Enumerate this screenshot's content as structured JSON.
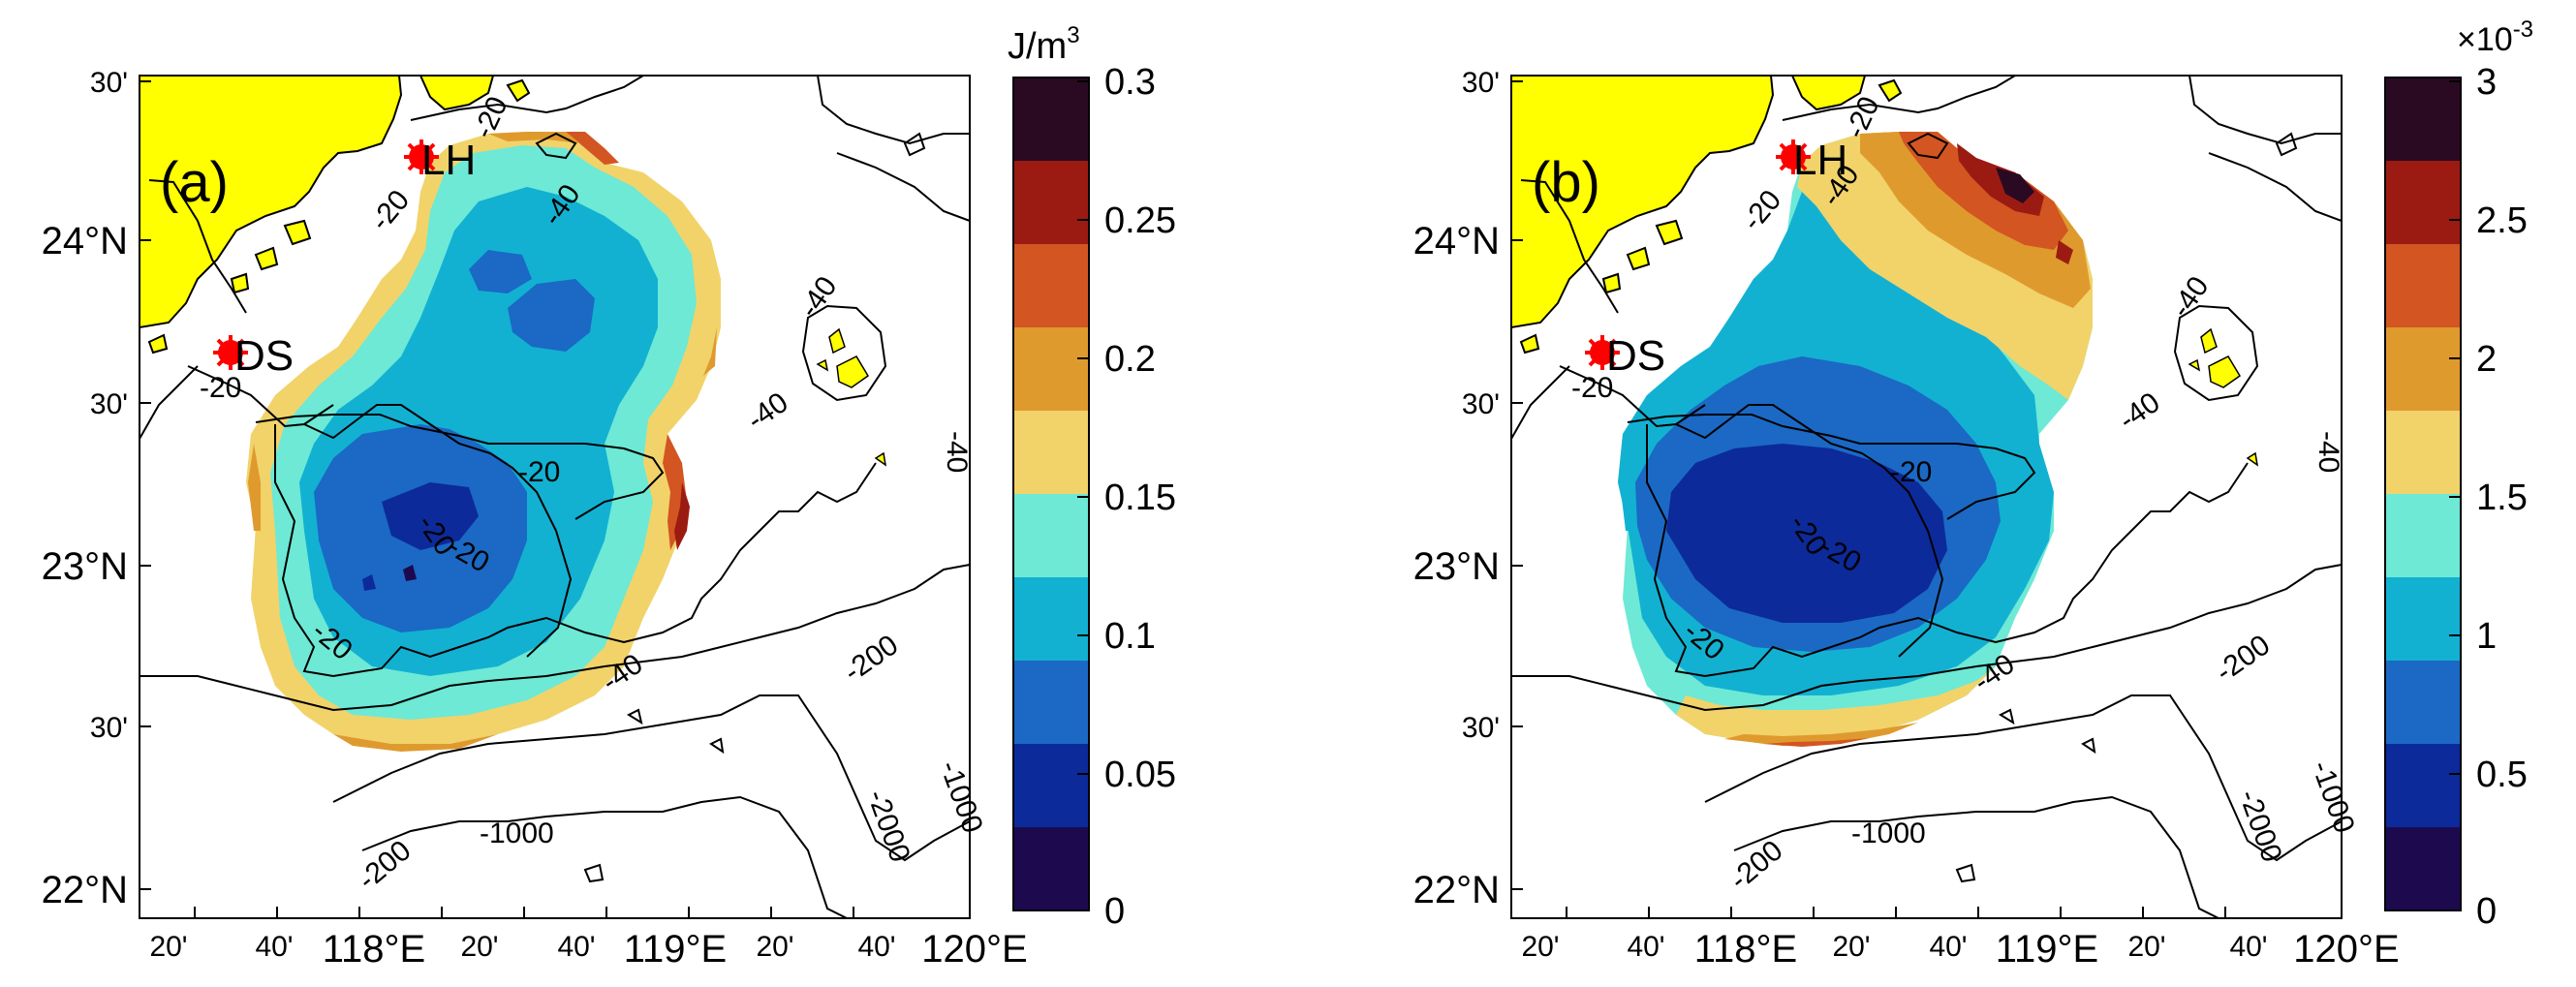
{
  "figure": {
    "panels": [
      {
        "label": "(a)",
        "colorbar": {
          "unit_prefix": "J/m",
          "unit_sup": "3",
          "tick_labels": [
            "0.3",
            "0.25",
            "0.2",
            "0.15",
            "0.1",
            "0.05",
            "0"
          ],
          "colors": [
            "#2a0a22",
            "#9b1b12",
            "#d35522",
            "#df9a2e",
            "#f1d36a",
            "#6de9d6",
            "#12b1d2",
            "#1b69c4",
            "#0c2a9a",
            "#1d0a4e"
          ]
        },
        "markers": [
          {
            "name": "LH",
            "label": "LH"
          },
          {
            "name": "DS",
            "label": "DS"
          }
        ],
        "contour_labels": [
          "-20",
          "-40",
          "-20",
          "-40",
          "-40",
          "-20",
          "-20",
          "-20",
          "-20",
          "-40",
          "-40",
          "-200",
          "-200",
          "-1000",
          "-1000",
          "-2000",
          "-20"
        ]
      },
      {
        "label": "(b)",
        "colorbar": {
          "unit_prefix": "×10",
          "unit_sup": "-3",
          "tick_labels": [
            "3",
            "2.5",
            "2",
            "1.5",
            "1",
            "0.5",
            "0"
          ],
          "colors": [
            "#2a0a22",
            "#9b1b12",
            "#d35522",
            "#df9a2e",
            "#f1d36a",
            "#6de9d6",
            "#12b1d2",
            "#1b69c4",
            "#0c2a9a",
            "#1d0a4e"
          ]
        },
        "markers": [
          {
            "name": "LH",
            "label": "LH"
          },
          {
            "name": "DS",
            "label": "DS"
          }
        ],
        "contour_labels": [
          "-20",
          "-40",
          "-20",
          "-40",
          "-40",
          "-20",
          "-20",
          "-20",
          "-20",
          "-40",
          "-40",
          "-200",
          "-200",
          "-1000",
          "-1000",
          "-2000",
          "-20"
        ]
      }
    ],
    "lat_ticks": [
      "30'",
      "24°N",
      "30'",
      "23°N",
      "30'",
      "22°N"
    ],
    "lon_ticks": [
      "20'",
      "40'",
      "118°E",
      "20'",
      "40'",
      "119°E",
      "20'",
      "40'",
      "120°E"
    ]
  },
  "chart_data": [
    {
      "type": "heatmap",
      "title": "(a)",
      "quantity_unit": "J/m3",
      "colorbar_range": [
        0,
        0.3
      ],
      "colorbar_levels": [
        0,
        0.03,
        0.06,
        0.09,
        0.12,
        0.15,
        0.18,
        0.21,
        0.24,
        0.27,
        0.3
      ],
      "colorbar_ticks": [
        0,
        0.05,
        0.1,
        0.15,
        0.2,
        0.25,
        0.3
      ],
      "lon_range": [
        117.2,
        120.0
      ],
      "lat_range": [
        21.85,
        24.62
      ],
      "lat_ticks_deg": [
        24.5,
        24.0,
        23.5,
        23.0,
        22.5,
        22.0
      ],
      "lon_ticks_deg": [
        117.333,
        117.667,
        118.0,
        118.333,
        118.667,
        119.0,
        119.333,
        119.667,
        120.0
      ],
      "isobaths_m": [
        -20,
        -40,
        -200,
        -1000,
        -2000
      ],
      "stations": [
        "LH",
        "DS"
      ]
    },
    {
      "type": "heatmap",
      "title": "(b)",
      "quantity_unit": "x10^-3",
      "colorbar_range": [
        0,
        3
      ],
      "colorbar_levels": [
        0,
        0.3,
        0.6,
        0.9,
        1.2,
        1.5,
        1.8,
        2.1,
        2.4,
        2.7,
        3.0
      ],
      "colorbar_ticks": [
        0,
        0.5,
        1,
        1.5,
        2,
        2.5,
        3
      ],
      "lon_range": [
        117.2,
        120.0
      ],
      "lat_range": [
        21.85,
        24.62
      ],
      "lat_ticks_deg": [
        24.5,
        24.0,
        23.5,
        23.0,
        22.5,
        22.0
      ],
      "lon_ticks_deg": [
        117.333,
        117.667,
        118.0,
        118.333,
        118.667,
        119.0,
        119.333,
        119.667,
        120.0
      ],
      "isobaths_m": [
        -20,
        -40,
        -200,
        -1000,
        -2000
      ],
      "stations": [
        "LH",
        "DS"
      ]
    }
  ]
}
